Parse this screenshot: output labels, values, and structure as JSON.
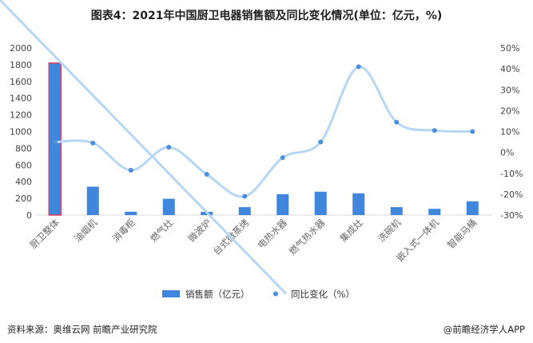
{
  "title": "图表4：2021年中国厨卫电器销售额及同比变化情况(单位：亿元，%)",
  "source": "资料来源：奥维云网 前瞻产业研究院",
  "credit": "@前瞻经济学人APP",
  "colors": {
    "bar": "#3f86dc",
    "bar_highlight": "#e0425e",
    "line": "#b7d6f2",
    "marker": "#4c8fdc"
  },
  "chart_data": {
    "type": "bar",
    "categories": [
      "厨卫整体",
      "油烟机",
      "消毒柜",
      "燃气灶",
      "微波炉",
      "台式微蒸烤",
      "电热水器",
      "燃气热水器",
      "集成灶",
      "洗碗机",
      "嵌入式一体机",
      "智能马桶"
    ],
    "series": [
      {
        "name": "销售额（亿元）",
        "type": "bar",
        "axis": "left",
        "values": [
          1820,
          340,
          40,
          195,
          38,
          95,
          250,
          280,
          260,
          95,
          75,
          165
        ]
      },
      {
        "name": "同比变化（%）",
        "type": "line",
        "axis": "right",
        "smooth": true,
        "values": [
          5,
          4.5,
          -8.5,
          2.5,
          -10.5,
          -21,
          -2.5,
          5,
          41,
          14.5,
          10.5,
          10
        ]
      }
    ],
    "ylim_left": [
      0,
      2000
    ],
    "yticks_left": [
      "0",
      "200",
      "400",
      "600",
      "800",
      "1000",
      "1200",
      "1400",
      "1600",
      "1800",
      "2000"
    ],
    "ylim_right": [
      -30,
      50
    ],
    "yticks_right": [
      "-30%",
      "-20%",
      "-10%",
      "0%",
      "10%",
      "20%",
      "30%",
      "40%",
      "50%"
    ],
    "highlight_category": "厨卫整体",
    "legend_position": "bottom",
    "grid": false
  }
}
